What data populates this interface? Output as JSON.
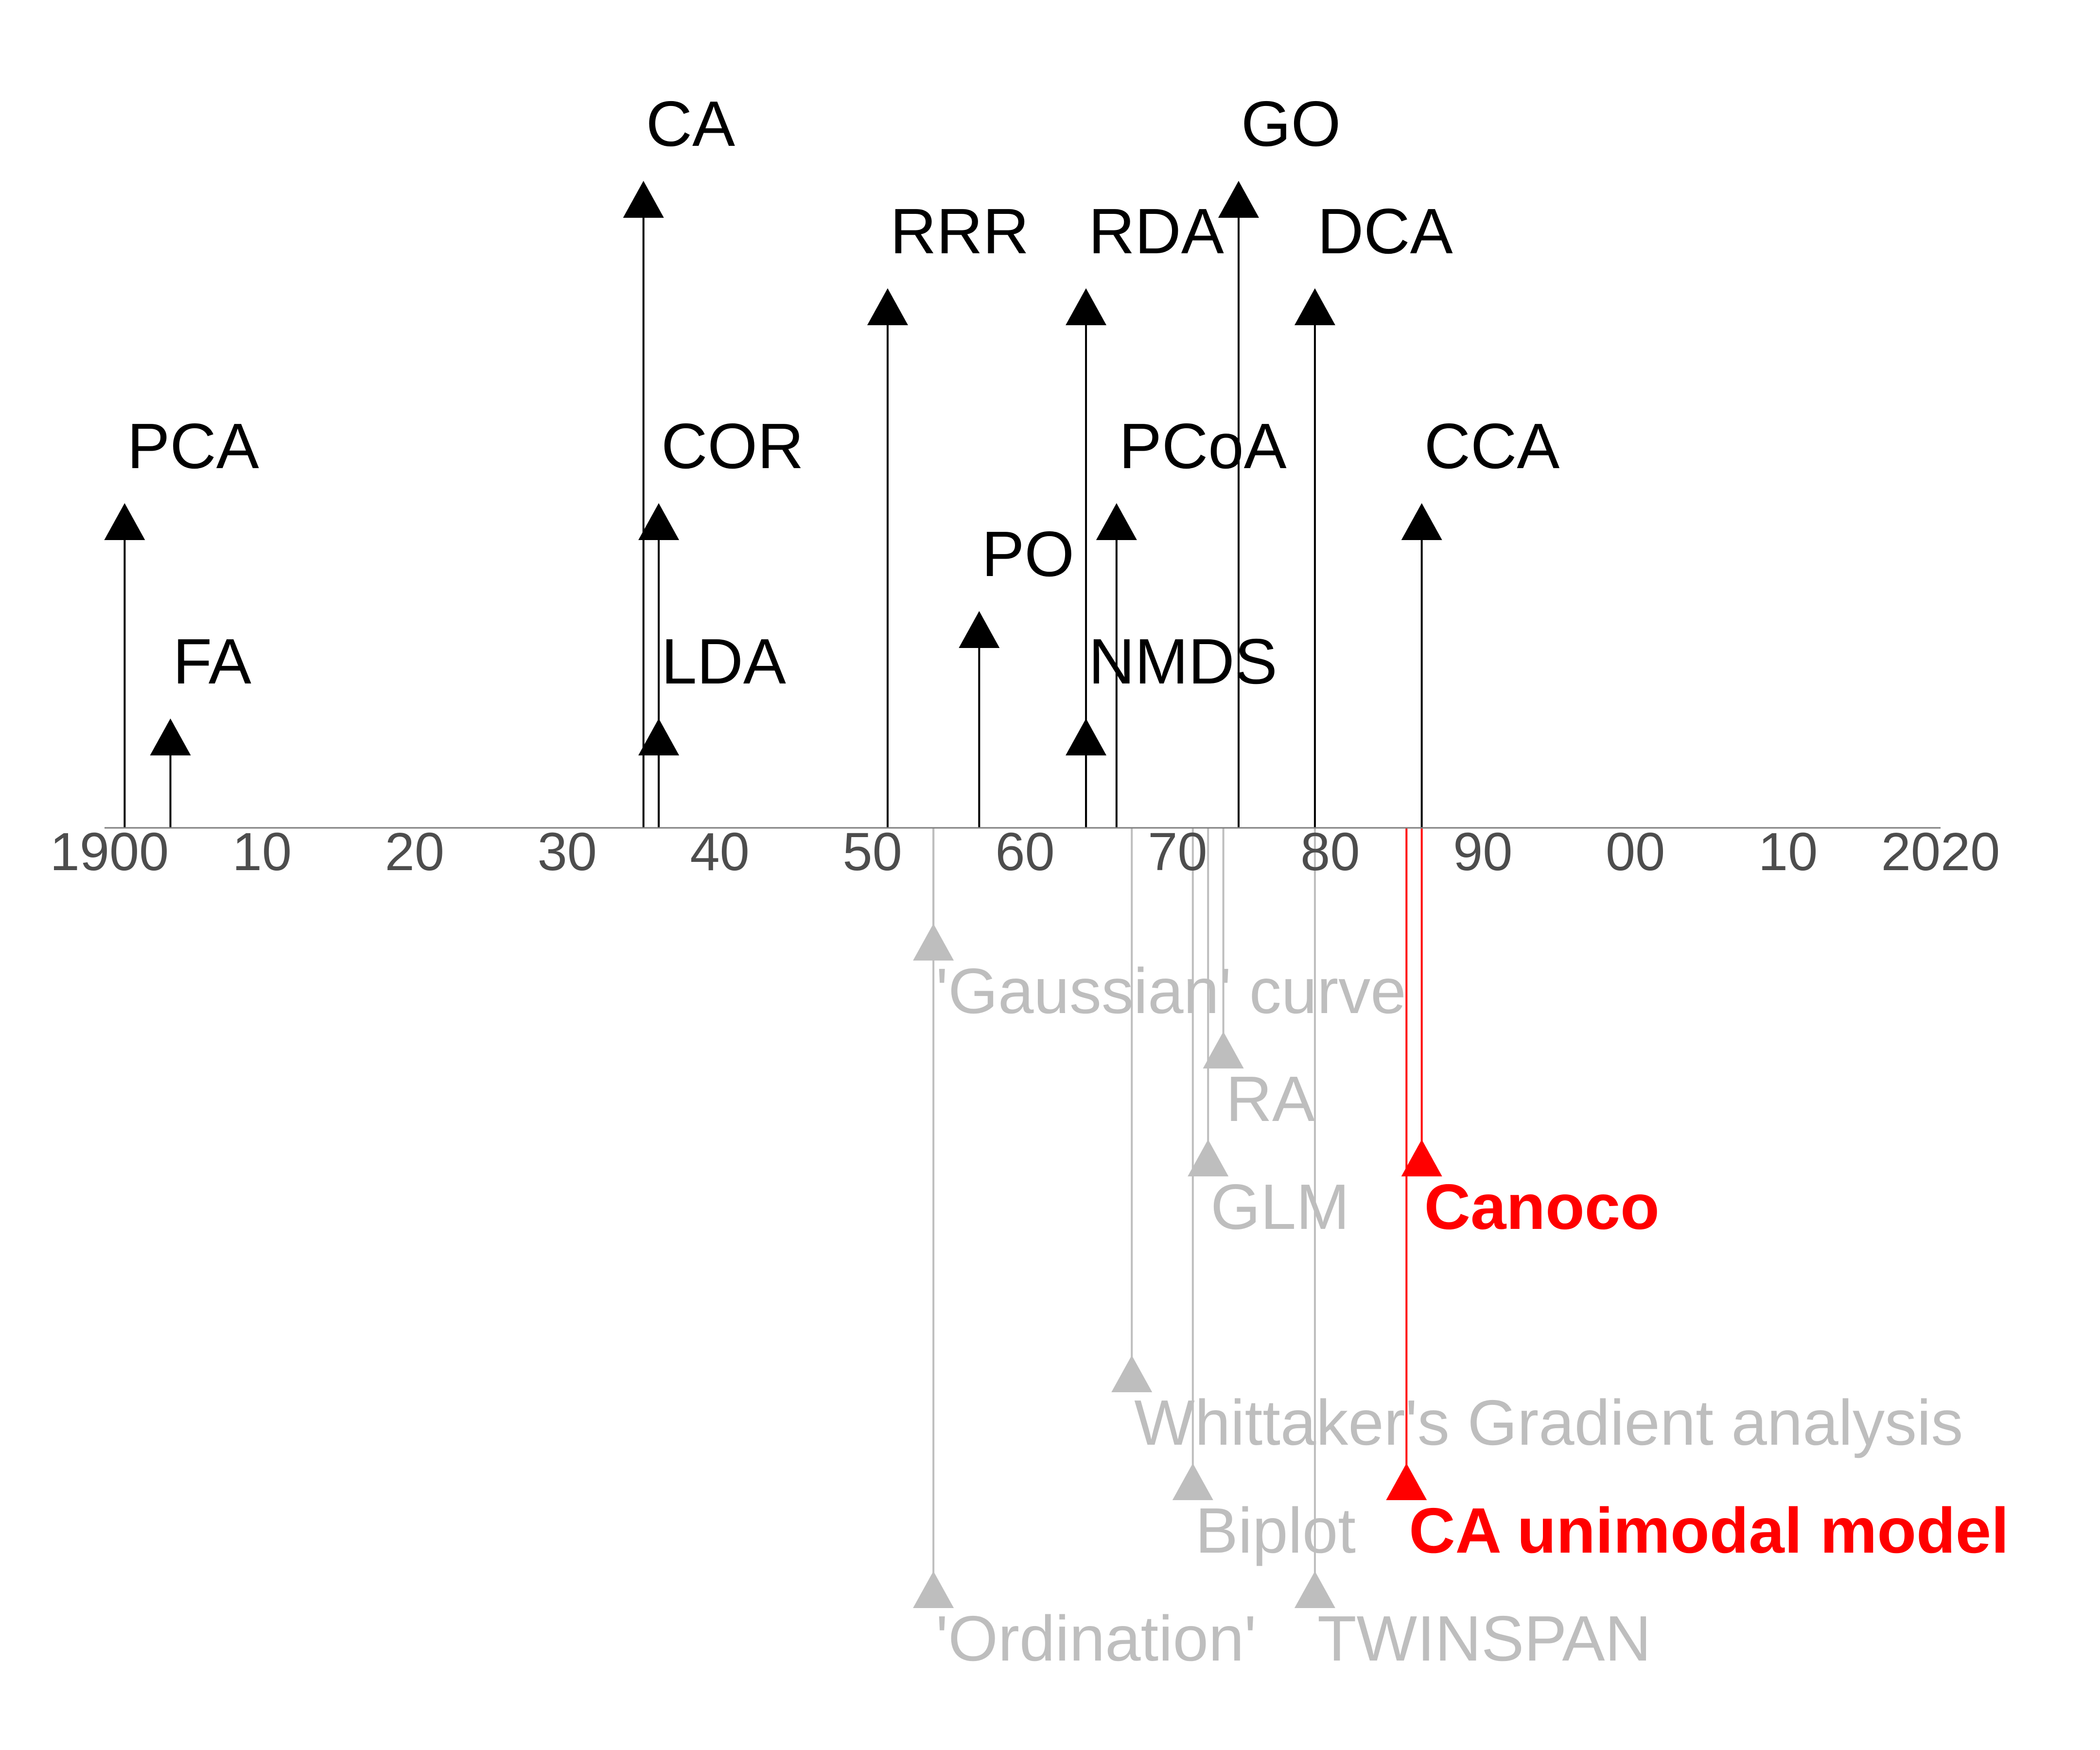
{
  "chart_data": {
    "type": "timeline",
    "title": "",
    "xlabel": "",
    "ylabel": "",
    "xlim": [
      1900,
      2020
    ],
    "axis_ticks": [
      {
        "year": 1900,
        "label": "1900"
      },
      {
        "year": 1910,
        "label": "10"
      },
      {
        "year": 1920,
        "label": "20"
      },
      {
        "year": 1930,
        "label": "30"
      },
      {
        "year": 1940,
        "label": "40"
      },
      {
        "year": 1950,
        "label": "50"
      },
      {
        "year": 1960,
        "label": "60"
      },
      {
        "year": 1970,
        "label": "70"
      },
      {
        "year": 1980,
        "label": "80"
      },
      {
        "year": 1990,
        "label": "90"
      },
      {
        "year": 2000,
        "label": "00"
      },
      {
        "year": 2010,
        "label": "10"
      },
      {
        "year": 2020,
        "label": "2020"
      }
    ],
    "grid": false,
    "colors": {
      "methods": "#000000",
      "context": "#bebebe",
      "highlight": "#ff0000",
      "axis": "#7f7f7f",
      "ticks": "#4d4d4d"
    },
    "series": [
      {
        "group": "methods",
        "color": "#000000",
        "direction": "up",
        "events": [
          {
            "label": "PCA",
            "year": 1901,
            "level": 2
          },
          {
            "label": "FA",
            "year": 1904,
            "level": 1
          },
          {
            "label": "CA",
            "year": 1935,
            "level": 5
          },
          {
            "label": "COR",
            "year": 1936,
            "level": 2
          },
          {
            "label": "LDA",
            "year": 1936,
            "level": 1
          },
          {
            "label": "RRR",
            "year": 1951,
            "level": 4
          },
          {
            "label": "PO",
            "year": 1957,
            "level": 1.5
          },
          {
            "label": "RDA",
            "year": 1964,
            "level": 4
          },
          {
            "label": "NMDS",
            "year": 1964,
            "level": 1
          },
          {
            "label": "PCoA",
            "year": 1966,
            "level": 2
          },
          {
            "label": "GO",
            "year": 1974,
            "level": 5
          },
          {
            "label": "DCA",
            "year": 1979,
            "level": 4
          },
          {
            "label": "CCA",
            "year": 1986,
            "level": 2
          }
        ]
      },
      {
        "group": "context",
        "color": "#bebebe",
        "direction": "down",
        "events": [
          {
            "label": "'Gaussian' curve",
            "year": 1954,
            "level": 1
          },
          {
            "label": "RA",
            "year": 1973,
            "level": 2
          },
          {
            "label": "GLM",
            "year": 1972,
            "level": 3
          },
          {
            "label": "Whittaker's Gradient analysis",
            "year": 1967,
            "level": 5
          },
          {
            "label": "Biplot",
            "year": 1971,
            "level": 6
          },
          {
            "label": "'Ordination'",
            "year": 1954,
            "level": 7
          },
          {
            "label": "TWINSPAN",
            "year": 1979,
            "level": 7
          }
        ]
      },
      {
        "group": "software",
        "color": "#ff0000",
        "direction": "down",
        "bold": true,
        "events": [
          {
            "label": "Canoco",
            "year": 1986,
            "level": 3
          },
          {
            "label": "CA unimodal model",
            "year": 1985,
            "level": 6
          }
        ]
      }
    ]
  }
}
